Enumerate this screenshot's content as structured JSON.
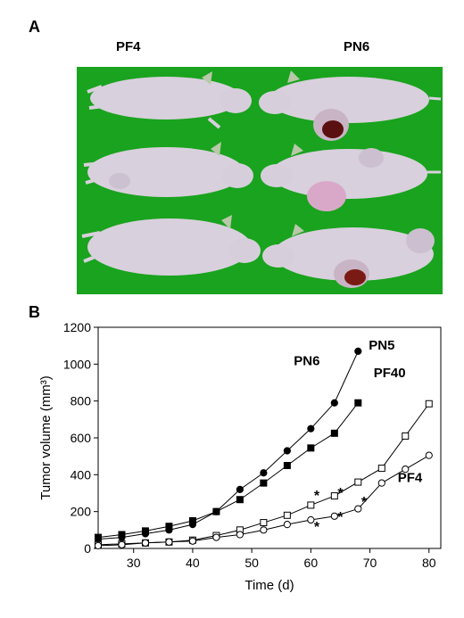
{
  "figure": {
    "panel_a_letter": "A",
    "panel_b_letter": "B",
    "photo_column_labels": [
      "PF4",
      "PN6"
    ]
  },
  "colors": {
    "photo_background": "#19a31e",
    "mouse_skin": "#d8d0dc",
    "tumor_dark": "#5a1010",
    "tumor_light": "#d9a8c8"
  },
  "chart_data": {
    "type": "line",
    "title": "",
    "xlabel": "Time (d)",
    "ylabel": "Tumor volume (mm³)",
    "xlim": [
      24,
      82
    ],
    "ylim": [
      0,
      1200
    ],
    "x_ticks": [
      30,
      40,
      50,
      60,
      70,
      80
    ],
    "y_ticks": [
      0,
      200,
      400,
      600,
      800,
      1000,
      1200
    ],
    "grid": false,
    "series": [
      {
        "name": "PN5",
        "marker": "filled-circle",
        "points": [
          [
            24,
            50
          ],
          [
            28,
            60
          ],
          [
            32,
            80
          ],
          [
            36,
            100
          ],
          [
            40,
            130
          ],
          [
            44,
            200
          ],
          [
            48,
            320
          ],
          [
            52,
            410
          ],
          [
            56,
            530
          ],
          [
            60,
            650
          ],
          [
            64,
            790
          ],
          [
            68,
            1070
          ]
        ]
      },
      {
        "name": "PN6",
        "marker": "filled-square",
        "points": [
          [
            24,
            60
          ],
          [
            28,
            75
          ],
          [
            32,
            95
          ],
          [
            36,
            120
          ],
          [
            40,
            150
          ],
          [
            44,
            200
          ],
          [
            48,
            265
          ],
          [
            52,
            355
          ],
          [
            56,
            450
          ],
          [
            60,
            545
          ],
          [
            64,
            625
          ],
          [
            68,
            790
          ]
        ]
      },
      {
        "name": "PF40",
        "marker": "open-square",
        "points": [
          [
            24,
            20
          ],
          [
            28,
            25
          ],
          [
            32,
            30
          ],
          [
            36,
            35
          ],
          [
            40,
            45
          ],
          [
            44,
            70
          ],
          [
            48,
            100
          ],
          [
            52,
            140
          ],
          [
            56,
            180
          ],
          [
            60,
            235
          ],
          [
            64,
            285
          ],
          [
            68,
            360
          ],
          [
            72,
            435
          ],
          [
            76,
            610
          ],
          [
            80,
            785
          ]
        ]
      },
      {
        "name": "PF4",
        "marker": "open-circle",
        "points": [
          [
            24,
            15
          ],
          [
            28,
            20
          ],
          [
            32,
            30
          ],
          [
            36,
            35
          ],
          [
            40,
            40
          ],
          [
            44,
            60
          ],
          [
            48,
            75
          ],
          [
            52,
            100
          ],
          [
            56,
            130
          ],
          [
            60,
            155
          ],
          [
            64,
            175
          ],
          [
            68,
            215
          ],
          [
            72,
            355
          ],
          [
            76,
            430
          ],
          [
            80,
            505
          ]
        ]
      }
    ],
    "significance_markers": [
      {
        "label": "*",
        "x": 61,
        "y": 300
      },
      {
        "label": "*",
        "x": 61,
        "y": 130
      },
      {
        "label": "*",
        "x": 65,
        "y": 315
      },
      {
        "label": "*",
        "x": 65,
        "y": 185
      },
      {
        "label": "*",
        "x": 69,
        "y": 265
      }
    ]
  }
}
